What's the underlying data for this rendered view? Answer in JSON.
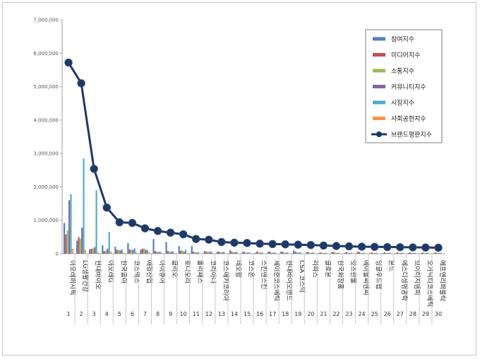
{
  "chart_data": {
    "type": "bar",
    "ylim": [
      0,
      7000000
    ],
    "yticks": [
      0,
      1000000,
      2000000,
      3000000,
      4000000,
      5000000,
      6000000,
      7000000
    ],
    "ytick_labels": [
      "0",
      "1,000,000",
      "2,000,000",
      "3,000,000",
      "4,000,000",
      "5,000,000",
      "6,000,000",
      "7,000,000"
    ],
    "grid": false,
    "legend_position": "top-right",
    "x_numbers": [
      "1",
      "2",
      "3",
      "4",
      "5",
      "6",
      "7",
      "8",
      "9",
      "10",
      "11",
      "12",
      "13",
      "14",
      "15",
      "16",
      "17",
      "18",
      "19",
      "20",
      "21",
      "22",
      "23",
      "24",
      "25",
      "26",
      "27",
      "28",
      "29",
      "30"
    ],
    "categories": [
      "아모레퍼시픽",
      "LG생활건강",
      "현대바이오",
      "아모레G",
      "한국콜마",
      "코스맥스",
      "애경산업",
      "아이큐어",
      "클리오",
      "토니모리",
      "올리패스",
      "코리아나",
      "코스메카코리아",
      "네오팜",
      "코스온",
      "스킨앤스킨",
      "제이준코스메틱",
      "현대바이오랜드",
      "CSA 코스믹",
      "라파스",
      "글로본",
      "한국화장품",
      "잇츠한불",
      "에이블씨엔씨",
      "잉글우드랩",
      "본느",
      "에스디생명공학",
      "브이티지엠피",
      "오가닉티코스메틱",
      "에프앤리퍼블릭"
    ],
    "series": [
      {
        "name": "참여지수",
        "color": "#4f81bd",
        "type": "bar",
        "values": [
          920000,
          390000,
          130000,
          250000,
          210000,
          320000,
          120000,
          440000,
          350000,
          230000,
          230000,
          80000,
          60000,
          100000,
          60000,
          30000,
          60000,
          60000,
          100000,
          40000,
          30000,
          50000,
          30000,
          60000,
          25000,
          25000,
          20000,
          25000,
          20000,
          20000
        ]
      },
      {
        "name": "미디어지수",
        "color": "#c0504d",
        "type": "bar",
        "values": [
          580000,
          500000,
          150000,
          80000,
          120000,
          130000,
          150000,
          80000,
          80000,
          90000,
          60000,
          60000,
          60000,
          60000,
          50000,
          70000,
          60000,
          60000,
          60000,
          50000,
          40000,
          50000,
          50000,
          50000,
          40000,
          40000,
          40000,
          40000,
          40000,
          40000
        ]
      },
      {
        "name": "소통지수",
        "color": "#9bbb59",
        "type": "bar",
        "values": [
          700000,
          450000,
          160000,
          90000,
          110000,
          110000,
          160000,
          60000,
          60000,
          100000,
          40000,
          60000,
          40000,
          50000,
          30000,
          40000,
          30000,
          30000,
          40000,
          30000,
          20000,
          30000,
          30000,
          30000,
          20000,
          20000,
          20000,
          20000,
          20000,
          20000
        ]
      },
      {
        "name": "커뮤니티지수",
        "color": "#8064a2",
        "type": "bar",
        "values": [
          1600000,
          780000,
          200000,
          150000,
          100000,
          120000,
          120000,
          50000,
          60000,
          60000,
          40000,
          50000,
          40000,
          40000,
          30000,
          30000,
          30000,
          30000,
          30000,
          20000,
          20000,
          20000,
          20000,
          20000,
          20000,
          20000,
          20000,
          20000,
          20000,
          20000
        ]
      },
      {
        "name": "시장지수",
        "color": "#4bacc6",
        "type": "bar",
        "values": [
          1780000,
          2850000,
          1900000,
          650000,
          130000,
          160000,
          110000,
          60000,
          70000,
          120000,
          40000,
          70000,
          60000,
          60000,
          40000,
          40000,
          40000,
          40000,
          40000,
          40000,
          30000,
          30000,
          30000,
          30000,
          30000,
          30000,
          30000,
          30000,
          30000,
          30000
        ]
      },
      {
        "name": "사회공헌지수",
        "color": "#f79646",
        "type": "bar",
        "values": [
          150000,
          120000,
          40000,
          60000,
          40000,
          40000,
          40000,
          20000,
          20000,
          20000,
          10000,
          20000,
          10000,
          10000,
          10000,
          10000,
          10000,
          10000,
          10000,
          10000,
          10000,
          10000,
          10000,
          10000,
          10000,
          10000,
          10000,
          10000,
          10000,
          10000
        ]
      },
      {
        "name": "브랜드평판지수",
        "color": "#1f3864",
        "type": "line",
        "values": [
          5720000,
          5100000,
          2540000,
          1380000,
          940000,
          920000,
          760000,
          680000,
          630000,
          580000,
          440000,
          420000,
          350000,
          330000,
          320000,
          300000,
          290000,
          280000,
          270000,
          260000,
          245000,
          230000,
          220000,
          210000,
          205000,
          200000,
          195000,
          190000,
          185000,
          180000
        ]
      }
    ]
  }
}
